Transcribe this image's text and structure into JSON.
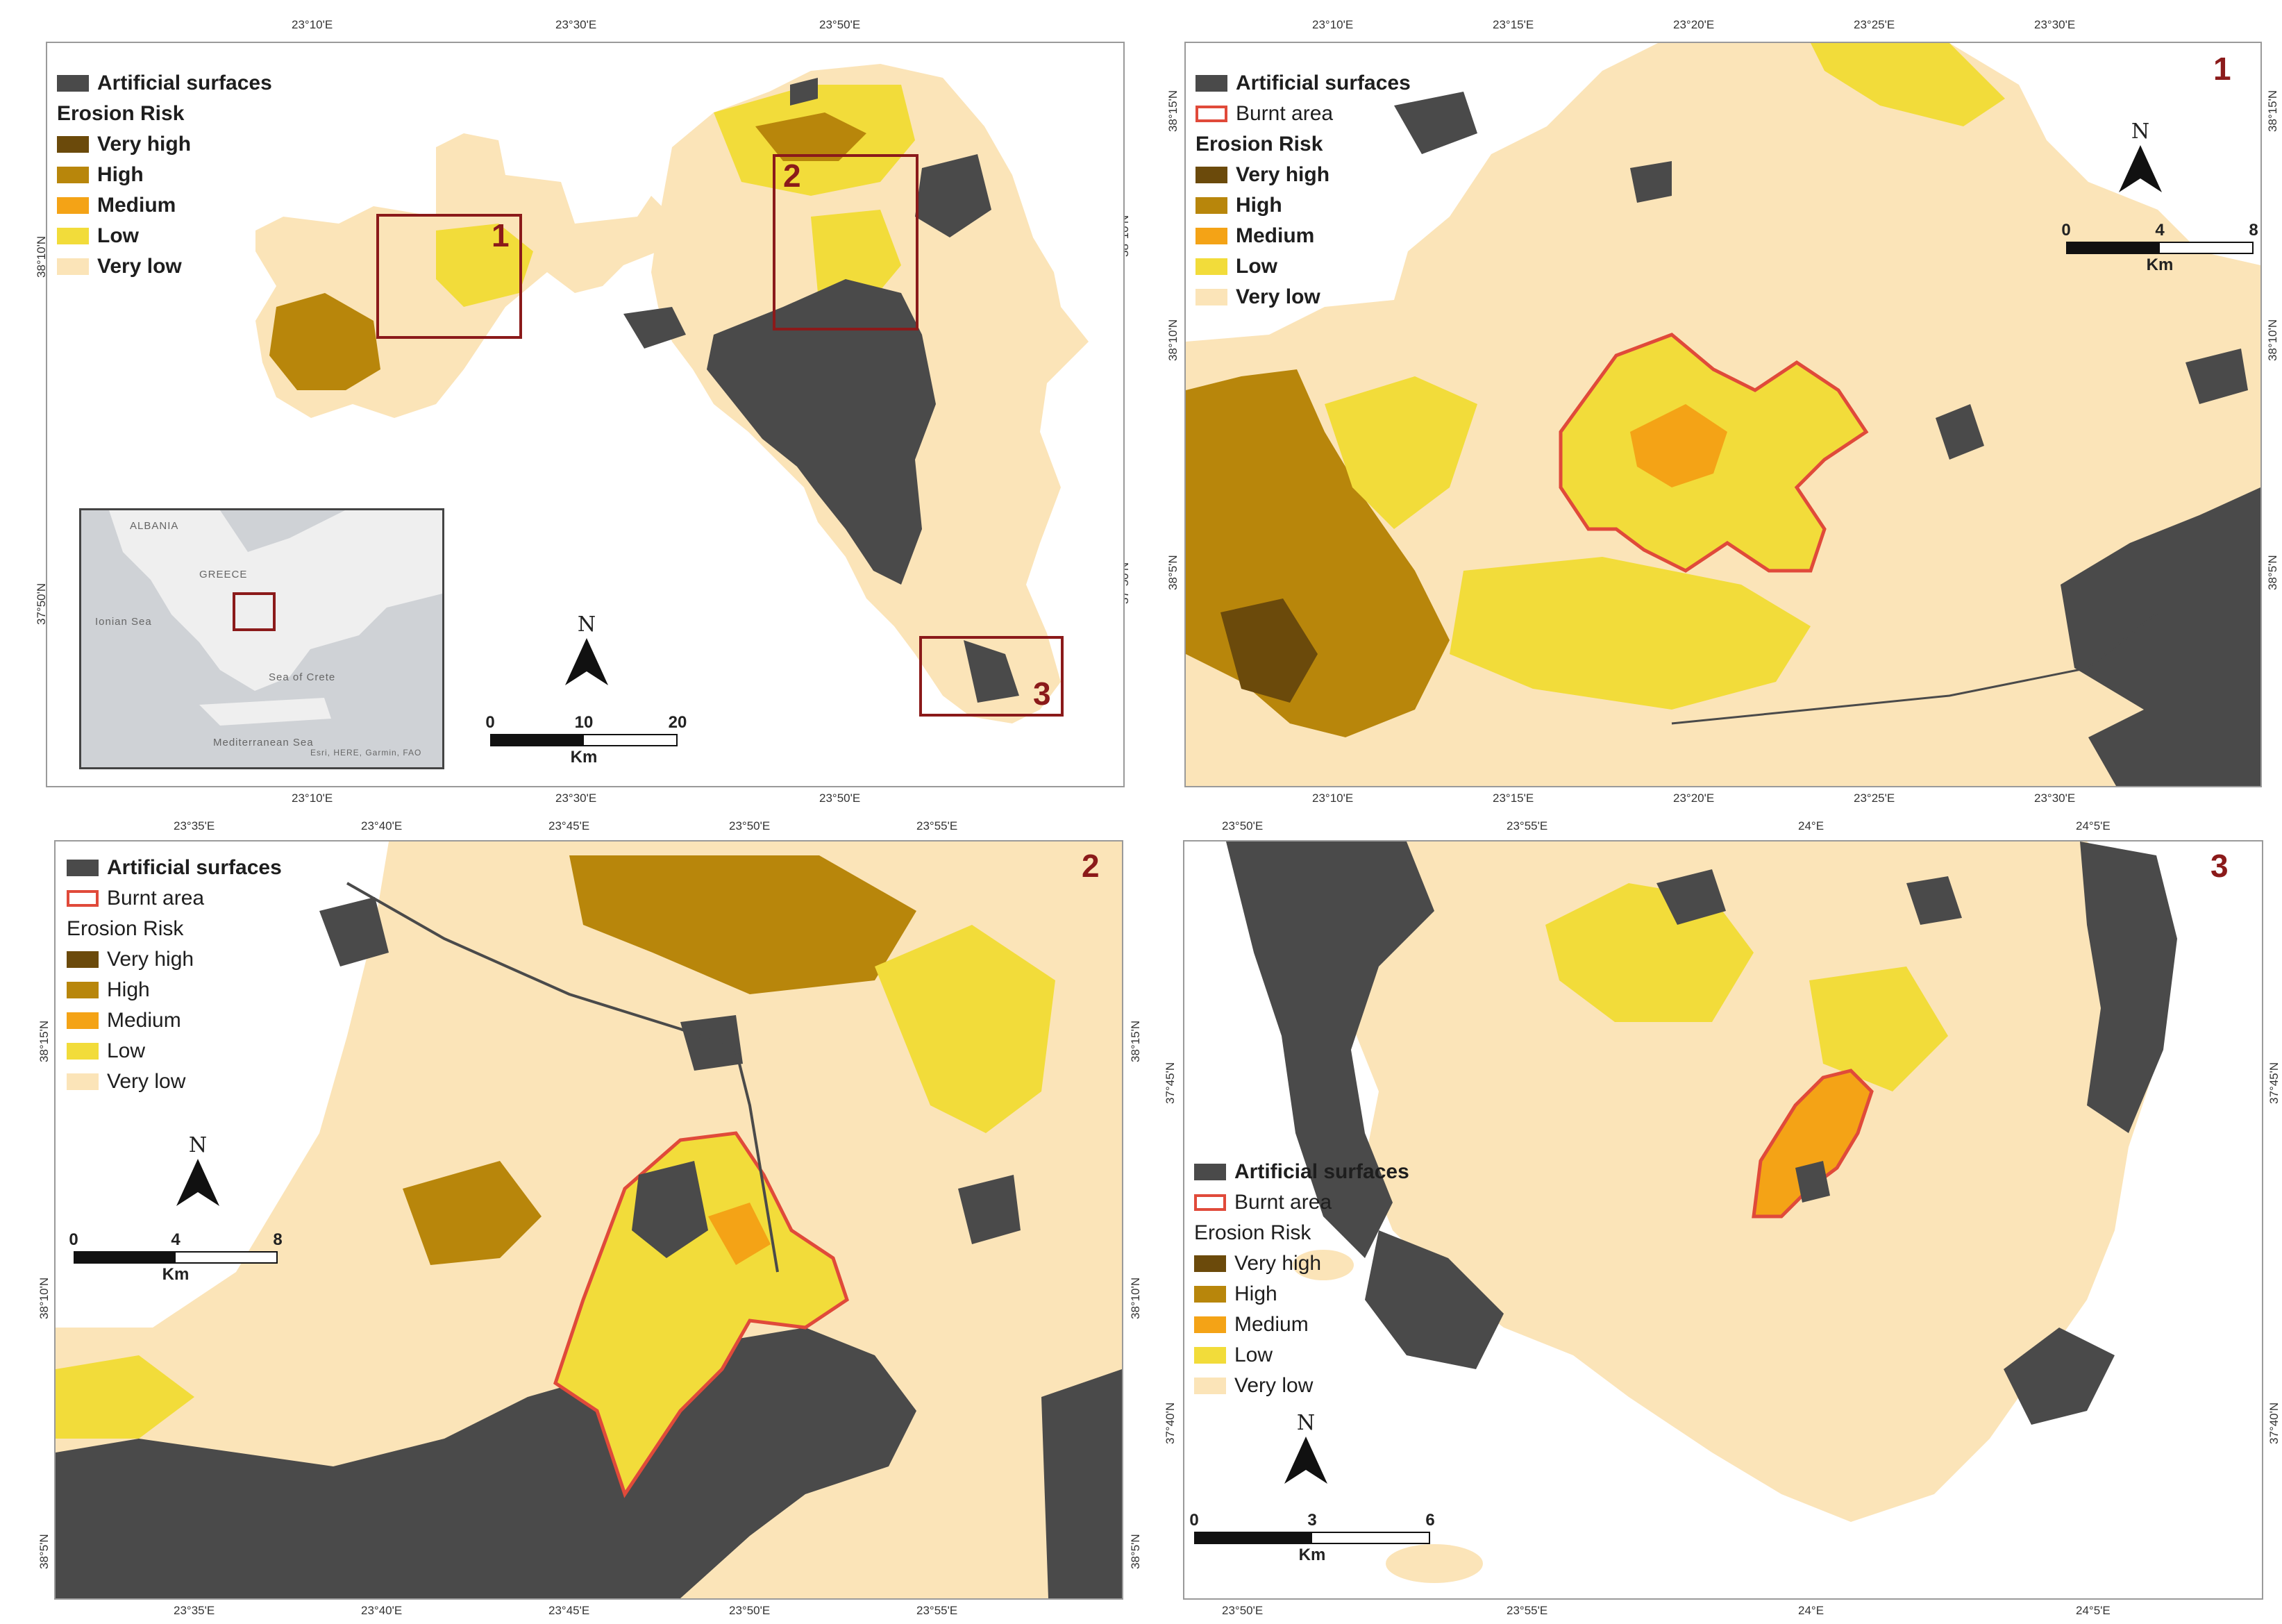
{
  "colors": {
    "artificial": "#4a4a4a",
    "very_high": "#6b4a0b",
    "high": "#b8860b",
    "medium": "#f4a316",
    "low": "#f2dc3a",
    "very_low": "#fbe4b8",
    "burnt": "#e04a3a",
    "study_box": "#8b1a1a"
  },
  "legend_labels": {
    "artificial": "Artificial surfaces",
    "burnt": "Burnt area",
    "erosion_head": "Erosion Risk",
    "very_high": "Very high",
    "high": "High",
    "medium": "Medium",
    "low": "Low",
    "very_low": "Very low"
  },
  "main": {
    "top_ticks": [
      "23°10'E",
      "23°30'E",
      "23°50'E"
    ],
    "bottom_ticks": [
      "23°10'E",
      "23°30'E",
      "23°50'E"
    ],
    "left_ticks": [
      "38°10'N",
      "37°50'N"
    ],
    "right_ticks": [
      "38°10'N",
      "37°50'N"
    ],
    "boxes": [
      "1",
      "2",
      "3"
    ],
    "scale": {
      "labels": [
        "0",
        "10",
        "20"
      ],
      "unit": "Km"
    },
    "north": "N",
    "inset": {
      "labels": [
        "ALBANIA",
        "GREECE",
        "Ionian Sea",
        "Sea of Crete",
        "Mediterranean Sea"
      ],
      "credit": "Esri, HERE, Garmin, FAO"
    }
  },
  "panel1": {
    "number": "1",
    "top_ticks": [
      "23°10'E",
      "23°15'E",
      "23°20'E",
      "23°25'E",
      "23°30'E"
    ],
    "bottom_ticks": [
      "23°10'E",
      "23°15'E",
      "23°20'E",
      "23°25'E",
      "23°30'E"
    ],
    "left_ticks": [
      "38°15'N",
      "38°10'N",
      "38°5'N"
    ],
    "right_ticks": [
      "38°15'N",
      "38°10'N",
      "38°5'N"
    ],
    "scale": {
      "labels": [
        "0",
        "4",
        "8"
      ],
      "unit": "Km"
    },
    "north": "N"
  },
  "panel2": {
    "number": "2",
    "top_ticks": [
      "23°35'E",
      "23°40'E",
      "23°45'E",
      "23°50'E",
      "23°55'E"
    ],
    "bottom_ticks": [
      "23°35'E",
      "23°40'E",
      "23°45'E",
      "23°50'E",
      "23°55'E"
    ],
    "left_ticks": [
      "38°15'N",
      "38°10'N",
      "38°5'N"
    ],
    "right_ticks": [
      "38°15'N",
      "38°10'N",
      "38°5'N"
    ],
    "scale": {
      "labels": [
        "0",
        "4",
        "8"
      ],
      "unit": "Km"
    },
    "north": "N"
  },
  "panel3": {
    "number": "3",
    "top_ticks": [
      "23°50'E",
      "23°55'E",
      "24°E",
      "24°5'E"
    ],
    "bottom_ticks": [
      "23°50'E",
      "23°55'E",
      "24°E",
      "24°5'E"
    ],
    "left_ticks": [
      "37°45'N",
      "37°40'N"
    ],
    "right_ticks": [
      "37°45'N",
      "37°40'N"
    ],
    "scale": {
      "labels": [
        "0",
        "3",
        "6"
      ],
      "unit": "Km"
    },
    "north": "N"
  }
}
